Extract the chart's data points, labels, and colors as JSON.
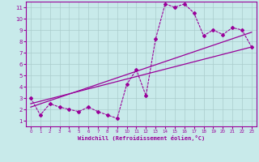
{
  "xlabel": "Windchill (Refroidissement éolien,°C)",
  "bg_color": "#c8eaea",
  "line_color": "#990099",
  "grid_color": "#aacccc",
  "xlim": [
    -0.5,
    23.5
  ],
  "ylim": [
    0.5,
    11.5
  ],
  "xticks": [
    0,
    1,
    2,
    3,
    4,
    5,
    6,
    7,
    8,
    9,
    10,
    11,
    12,
    13,
    14,
    15,
    16,
    17,
    18,
    19,
    20,
    21,
    22,
    23
  ],
  "yticks": [
    1,
    2,
    3,
    4,
    5,
    6,
    7,
    8,
    9,
    10,
    11
  ],
  "line1_x": [
    0,
    1,
    2,
    3,
    4,
    5,
    6,
    7,
    8,
    9,
    10,
    11,
    12,
    13,
    14,
    15,
    16,
    17,
    18,
    19,
    20,
    21,
    22,
    23
  ],
  "line1_y": [
    3.0,
    1.5,
    2.5,
    2.2,
    2.0,
    1.8,
    2.2,
    1.8,
    1.5,
    1.2,
    4.2,
    5.5,
    3.2,
    8.2,
    11.3,
    11.0,
    11.3,
    10.5,
    8.5,
    9.0,
    8.6,
    9.2,
    9.0,
    7.5
  ],
  "line2_x": [
    0,
    23
  ],
  "line2_y": [
    2.5,
    7.5
  ],
  "line3_x": [
    0,
    23
  ],
  "line3_y": [
    2.2,
    8.8
  ]
}
